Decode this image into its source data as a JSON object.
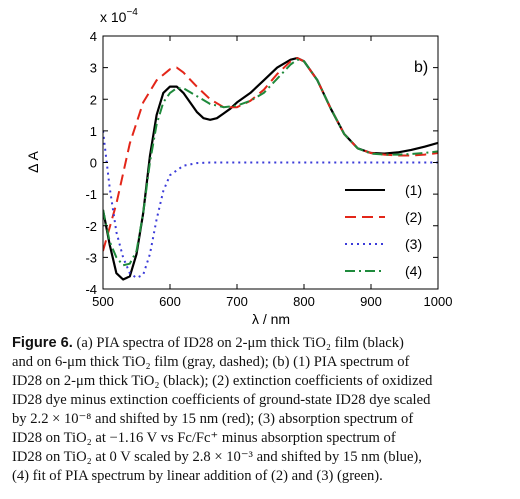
{
  "chart_data": {
    "type": "line",
    "panel_label": "b)",
    "xlabel": "λ / nm",
    "ylabel": "Δ A",
    "y_exponent_label": "x 10",
    "y_exponent_power": "−4",
    "xlim": [
      500,
      1000
    ],
    "ylim": [
      -4,
      4
    ],
    "x_ticks": [
      500,
      600,
      700,
      800,
      900,
      1000
    ],
    "y_ticks": [
      -4,
      -3,
      -2,
      -1,
      0,
      1,
      2,
      3,
      4
    ],
    "grid": false,
    "legend_position": "bottom-right",
    "series": [
      {
        "name": "(1)",
        "color": "#000000",
        "dash": "solid",
        "x": [
          500,
          510,
          520,
          530,
          540,
          550,
          560,
          570,
          580,
          590,
          600,
          610,
          620,
          630,
          640,
          650,
          660,
          670,
          680,
          690,
          700,
          720,
          740,
          760,
          780,
          790,
          800,
          820,
          840,
          860,
          880,
          900,
          920,
          940,
          960,
          980,
          1000
        ],
        "y": [
          -1.5,
          -2.6,
          -3.5,
          -3.7,
          -3.6,
          -2.9,
          -1.6,
          0.2,
          1.5,
          2.2,
          2.4,
          2.4,
          2.2,
          1.9,
          1.6,
          1.4,
          1.35,
          1.4,
          1.55,
          1.7,
          1.9,
          2.2,
          2.6,
          3.0,
          3.25,
          3.3,
          3.2,
          2.6,
          1.7,
          0.9,
          0.45,
          0.3,
          0.28,
          0.32,
          0.4,
          0.5,
          0.62
        ]
      },
      {
        "name": "(2)",
        "color": "#e32619",
        "dash": "dashed",
        "x": [
          500,
          520,
          540,
          560,
          580,
          600,
          610,
          620,
          640,
          660,
          680,
          700,
          720,
          740,
          760,
          780,
          790,
          800,
          820,
          840,
          860,
          880,
          900,
          920,
          940,
          960,
          980,
          1000
        ],
        "y": [
          -2.8,
          -1.3,
          0.6,
          1.9,
          2.6,
          2.95,
          3.0,
          2.85,
          2.4,
          2.0,
          1.75,
          1.75,
          1.95,
          2.3,
          2.8,
          3.2,
          3.3,
          3.2,
          2.6,
          1.7,
          0.9,
          0.45,
          0.3,
          0.25,
          0.22,
          0.22,
          0.25,
          0.3
        ]
      },
      {
        "name": "(3)",
        "color": "#3b3bd9",
        "dash": "dotted",
        "x": [
          500,
          510,
          520,
          530,
          540,
          550,
          560,
          570,
          580,
          590,
          600,
          620,
          640,
          660,
          700,
          800,
          900,
          1000
        ],
        "y": [
          1.0,
          -0.8,
          -2.2,
          -3.0,
          -3.5,
          -3.65,
          -3.55,
          -2.9,
          -1.8,
          -0.9,
          -0.4,
          -0.1,
          -0.02,
          0.0,
          0.0,
          0.0,
          0.0,
          0.0
        ]
      },
      {
        "name": "(4)",
        "color": "#1f8a3c",
        "dash": "dashdot",
        "x": [
          500,
          510,
          520,
          530,
          540,
          550,
          560,
          570,
          580,
          590,
          600,
          610,
          620,
          640,
          660,
          680,
          700,
          720,
          740,
          760,
          780,
          790,
          800,
          820,
          840,
          860,
          880,
          900,
          920,
          940,
          960,
          980,
          1000
        ],
        "y": [
          -1.5,
          -2.5,
          -3.0,
          -3.25,
          -3.2,
          -2.8,
          -1.6,
          0.0,
          1.2,
          1.9,
          2.2,
          2.35,
          2.35,
          2.1,
          1.85,
          1.75,
          1.8,
          1.95,
          2.2,
          2.65,
          3.1,
          3.25,
          3.2,
          2.6,
          1.7,
          0.9,
          0.45,
          0.28,
          0.25,
          0.25,
          0.27,
          0.3,
          0.35
        ]
      }
    ]
  },
  "caption": {
    "label": "Figure 6.",
    "lines": [
      "(a) PIA spectra of ID28 on 2-μm thick TiO₂ film (black)",
      "and on 6-μm thick TiO₂ film (gray, dashed); (b) (1) PIA spectrum of",
      "ID28 on 2-μm thick TiO₂ (black); (2) extinction coefficients of oxidized",
      "ID28 dye minus extinction coefficients of ground-state ID28 dye scaled",
      "by 2.2 × 10⁻⁸ and shifted by 15 nm (red); (3) absorption spectrum of",
      "ID28 on TiO₂ at −1.16 V vs Fc/Fc⁺ minus absorption spectrum of",
      "ID28 on TiO₂ at 0 V scaled by 2.8 × 10⁻³ and shifted by 15 nm (blue),",
      "(4) fit of PIA spectrum by linear addition of (2) and (3) (green)."
    ]
  }
}
